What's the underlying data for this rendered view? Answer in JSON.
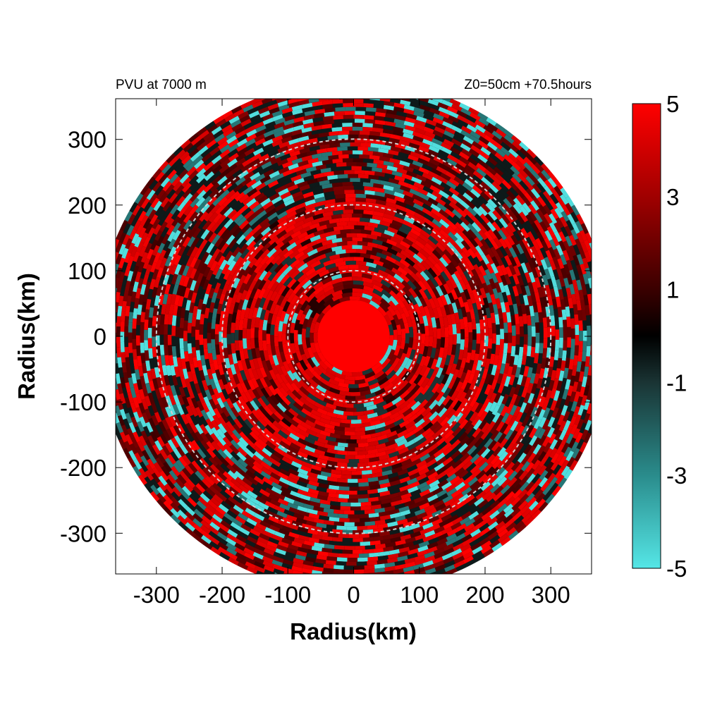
{
  "chart_data": {
    "type": "heatmap",
    "title_left": "PVU at  7000 m",
    "title_right": "Z0=50cm  +70.5hours",
    "xlabel": "Radius(km)",
    "ylabel": "Radius(km)",
    "xlim": [
      -362,
      362
    ],
    "ylim": [
      -362,
      362
    ],
    "x_ticks": [
      -300,
      -200,
      -100,
      0,
      100,
      200,
      300
    ],
    "y_ticks": [
      -300,
      -200,
      -100,
      0,
      100,
      200,
      300
    ],
    "x_tick_labels": [
      "-300",
      "-200",
      "-100",
      "0",
      "100",
      "200",
      "300"
    ],
    "y_tick_labels": [
      "-300",
      "-200",
      "-100",
      "0",
      "100",
      "200",
      "300"
    ],
    "domain_radius_km": 390,
    "reference_circle_radii_km": [
      100,
      200,
      300
    ],
    "colorbar": {
      "min": -5,
      "max": 5,
      "tick_values": [
        5,
        3,
        1,
        -1,
        -3,
        -5
      ],
      "tick_labels": [
        "5",
        "3",
        "1",
        "-1",
        "-3",
        "-5"
      ],
      "stops": [
        {
          "value": -5,
          "color": "#55e6e6"
        },
        {
          "value": -3,
          "color": "#2a8c8c"
        },
        {
          "value": -1,
          "color": "#1a3434"
        },
        {
          "value": 0,
          "color": "#000000"
        },
        {
          "value": 1,
          "color": "#3a0000"
        },
        {
          "value": 3,
          "color": "#a00000"
        },
        {
          "value": 5,
          "color": "#ff0000"
        }
      ]
    },
    "field_summary": {
      "core_value": 5,
      "core_radius_km": 55,
      "inner_ring_radius_km": [
        55,
        210
      ],
      "outer_ring_radius_km": [
        210,
        390
      ]
    },
    "grid": false,
    "colors": {
      "positive": "#ff0000",
      "negative": "#55e6e6",
      "zero": "#000000",
      "circle": "#d0d0d0"
    }
  }
}
